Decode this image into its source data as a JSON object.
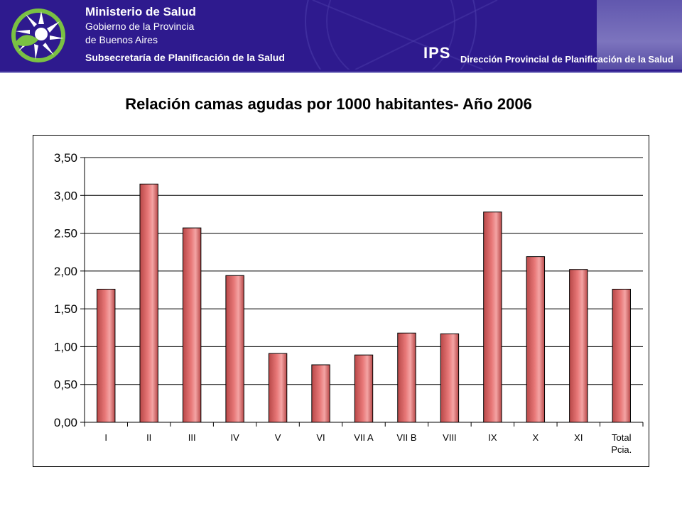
{
  "header": {
    "ministry_title": "Ministerio de Salud",
    "ministry_line2": "Gobierno de la Provincia",
    "ministry_line3": "de Buenos Aires",
    "subsecretaria": "Subsecretaría de Planificación de la Salud",
    "ips_logo": "IPS",
    "direccion": "Dirección Provincial de Planificación de la Salud",
    "banner_color": "#2e1a8e",
    "logo_colors": [
      "#7ac143",
      "#ffffff"
    ]
  },
  "chart_data": {
    "type": "bar",
    "title": "Relación camas agudas por 1000 habitantes- Año 2006",
    "categories": [
      "I",
      "II",
      "III",
      "IV",
      "V",
      "VI",
      "VII A",
      "VII B",
      "VIII",
      "IX",
      "X",
      "XI",
      "Total\nPcia."
    ],
    "values": [
      1.76,
      3.15,
      2.57,
      1.94,
      0.91,
      0.76,
      0.89,
      1.18,
      1.17,
      2.78,
      2.19,
      2.02,
      1.76
    ],
    "ylim": [
      0,
      3.5
    ],
    "yticks": [
      "0,00",
      "0,50",
      "1,00",
      "1,50",
      "2,00",
      "2.50",
      "3,00",
      "3,50"
    ],
    "ytick_values": [
      0,
      0.5,
      1,
      1.5,
      2,
      2.5,
      3,
      3.5
    ],
    "grid": true,
    "bar_color": "#e87878",
    "xlabel": "",
    "ylabel": ""
  }
}
